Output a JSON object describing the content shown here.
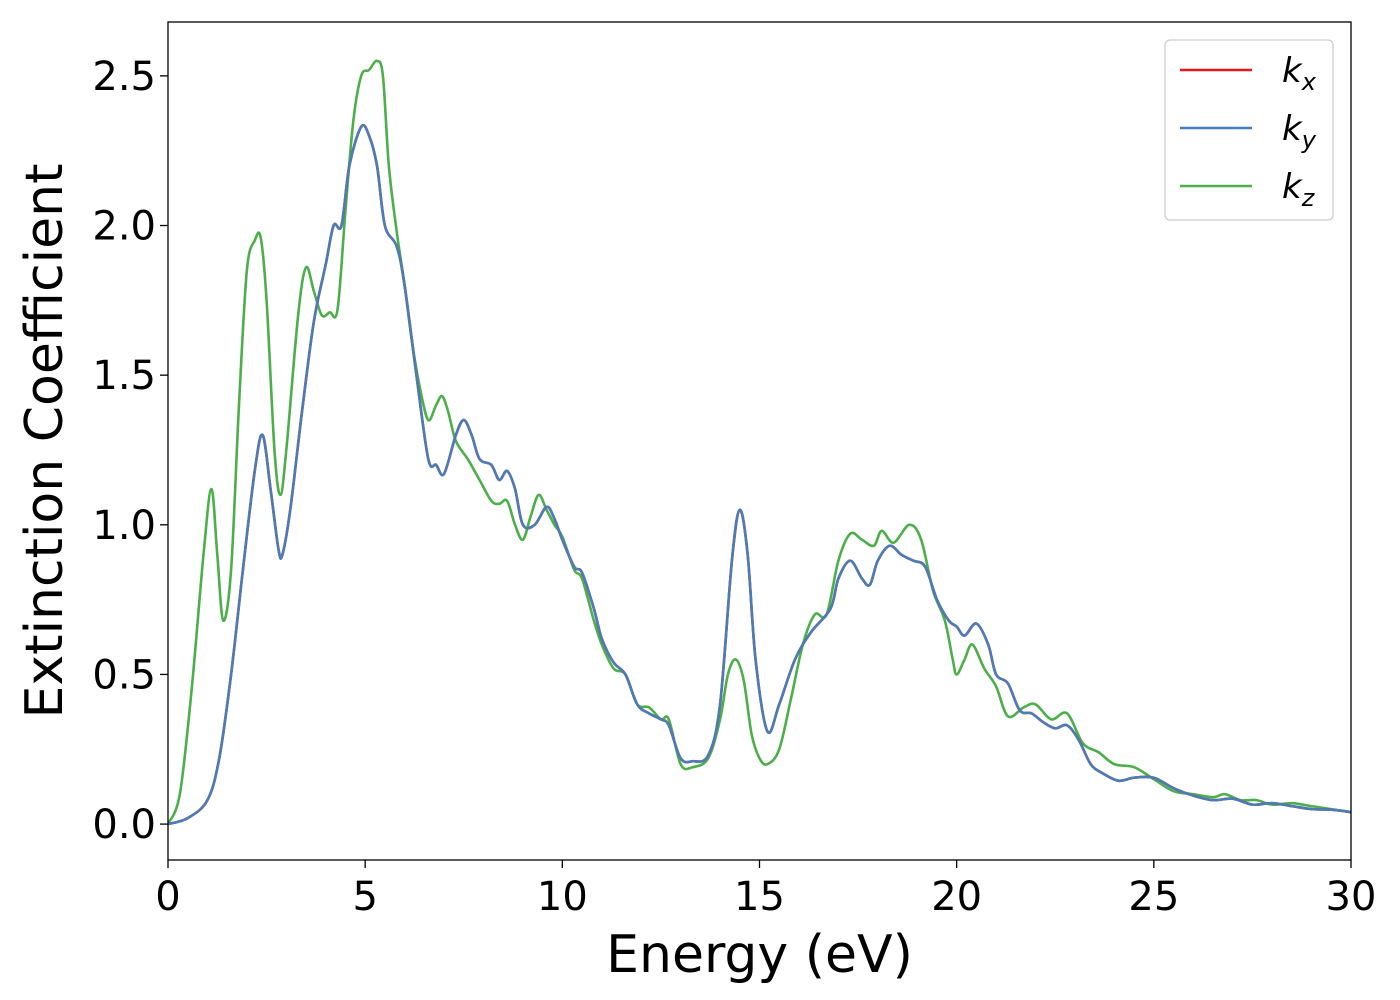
{
  "chart_data": {
    "type": "line",
    "xlabel": "Energy (eV)",
    "ylabel": "Extinction Coefficient",
    "xlim": [
      0,
      30
    ],
    "ylim": [
      -0.12,
      2.68
    ],
    "xticks": [
      0,
      5,
      10,
      15,
      20,
      25,
      30
    ],
    "yticks": [
      0.0,
      0.5,
      1.0,
      1.5,
      2.0,
      2.5
    ],
    "xtick_labels": [
      "0",
      "5",
      "10",
      "15",
      "20",
      "25",
      "30"
    ],
    "ytick_labels": [
      "0.0",
      "0.5",
      "1.0",
      "1.5",
      "2.0",
      "2.5"
    ],
    "grid": false,
    "legend_position": "top-right",
    "series": [
      {
        "name": "k",
        "subscript": "x",
        "color": "#e41a1c",
        "points": [
          [
            0,
            0
          ],
          [
            0.5,
            0.02
          ],
          [
            1.0,
            0.08
          ],
          [
            1.3,
            0.22
          ],
          [
            1.6,
            0.5
          ],
          [
            1.9,
            0.85
          ],
          [
            2.2,
            1.18
          ],
          [
            2.4,
            1.3
          ],
          [
            2.6,
            1.12
          ],
          [
            2.8,
            0.92
          ],
          [
            2.9,
            0.9
          ],
          [
            3.1,
            1.05
          ],
          [
            3.4,
            1.38
          ],
          [
            3.7,
            1.68
          ],
          [
            4.0,
            1.87
          ],
          [
            4.2,
            2.0
          ],
          [
            4.4,
            2.0
          ],
          [
            4.6,
            2.2
          ],
          [
            4.9,
            2.33
          ],
          [
            5.1,
            2.3
          ],
          [
            5.3,
            2.2
          ],
          [
            5.5,
            2.0
          ],
          [
            5.8,
            1.93
          ],
          [
            6.0,
            1.8
          ],
          [
            6.3,
            1.5
          ],
          [
            6.6,
            1.22
          ],
          [
            6.8,
            1.2
          ],
          [
            7.0,
            1.17
          ],
          [
            7.3,
            1.3
          ],
          [
            7.5,
            1.35
          ],
          [
            7.7,
            1.3
          ],
          [
            7.9,
            1.22
          ],
          [
            8.2,
            1.2
          ],
          [
            8.4,
            1.15
          ],
          [
            8.6,
            1.18
          ],
          [
            8.8,
            1.12
          ],
          [
            9.0,
            1.0
          ],
          [
            9.3,
            1.0
          ],
          [
            9.6,
            1.06
          ],
          [
            9.8,
            1.02
          ],
          [
            10.0,
            0.95
          ],
          [
            10.3,
            0.86
          ],
          [
            10.5,
            0.84
          ],
          [
            10.8,
            0.72
          ],
          [
            11.0,
            0.62
          ],
          [
            11.3,
            0.54
          ],
          [
            11.6,
            0.5
          ],
          [
            11.9,
            0.4
          ],
          [
            12.2,
            0.37
          ],
          [
            12.5,
            0.35
          ],
          [
            12.7,
            0.33
          ],
          [
            13.0,
            0.22
          ],
          [
            13.3,
            0.21
          ],
          [
            13.7,
            0.23
          ],
          [
            14.0,
            0.4
          ],
          [
            14.3,
            0.88
          ],
          [
            14.5,
            1.05
          ],
          [
            14.7,
            0.9
          ],
          [
            14.9,
            0.55
          ],
          [
            15.2,
            0.31
          ],
          [
            15.5,
            0.4
          ],
          [
            15.9,
            0.55
          ],
          [
            16.3,
            0.64
          ],
          [
            16.8,
            0.72
          ],
          [
            17.0,
            0.82
          ],
          [
            17.3,
            0.88
          ],
          [
            17.6,
            0.82
          ],
          [
            17.8,
            0.8
          ],
          [
            18.0,
            0.88
          ],
          [
            18.3,
            0.93
          ],
          [
            18.6,
            0.9
          ],
          [
            18.9,
            0.88
          ],
          [
            19.2,
            0.86
          ],
          [
            19.5,
            0.75
          ],
          [
            19.8,
            0.68
          ],
          [
            20.0,
            0.66
          ],
          [
            20.2,
            0.63
          ],
          [
            20.5,
            0.67
          ],
          [
            20.8,
            0.6
          ],
          [
            21.0,
            0.5
          ],
          [
            21.3,
            0.47
          ],
          [
            21.6,
            0.38
          ],
          [
            21.9,
            0.37
          ],
          [
            22.2,
            0.34
          ],
          [
            22.5,
            0.32
          ],
          [
            22.8,
            0.33
          ],
          [
            23.1,
            0.28
          ],
          [
            23.4,
            0.2
          ],
          [
            23.7,
            0.17
          ],
          [
            24.1,
            0.145
          ],
          [
            24.5,
            0.155
          ],
          [
            25.0,
            0.155
          ],
          [
            25.5,
            0.12
          ],
          [
            26.0,
            0.095
          ],
          [
            26.5,
            0.08
          ],
          [
            27.0,
            0.085
          ],
          [
            27.5,
            0.065
          ],
          [
            28.0,
            0.07
          ],
          [
            28.5,
            0.06
          ],
          [
            29.0,
            0.05
          ],
          [
            29.5,
            0.048
          ],
          [
            30.0,
            0.04
          ]
        ]
      },
      {
        "name": "k",
        "subscript": "y",
        "color": "#4a7db8",
        "points": [
          [
            0,
            0
          ],
          [
            0.5,
            0.02
          ],
          [
            1.0,
            0.08
          ],
          [
            1.3,
            0.22
          ],
          [
            1.6,
            0.5
          ],
          [
            1.9,
            0.85
          ],
          [
            2.2,
            1.18
          ],
          [
            2.4,
            1.3
          ],
          [
            2.6,
            1.12
          ],
          [
            2.8,
            0.92
          ],
          [
            2.9,
            0.9
          ],
          [
            3.1,
            1.05
          ],
          [
            3.4,
            1.38
          ],
          [
            3.7,
            1.68
          ],
          [
            4.0,
            1.87
          ],
          [
            4.2,
            2.0
          ],
          [
            4.4,
            2.0
          ],
          [
            4.6,
            2.2
          ],
          [
            4.9,
            2.33
          ],
          [
            5.1,
            2.3
          ],
          [
            5.3,
            2.2
          ],
          [
            5.5,
            2.0
          ],
          [
            5.8,
            1.93
          ],
          [
            6.0,
            1.8
          ],
          [
            6.3,
            1.5
          ],
          [
            6.6,
            1.22
          ],
          [
            6.8,
            1.2
          ],
          [
            7.0,
            1.17
          ],
          [
            7.3,
            1.3
          ],
          [
            7.5,
            1.35
          ],
          [
            7.7,
            1.3
          ],
          [
            7.9,
            1.22
          ],
          [
            8.2,
            1.2
          ],
          [
            8.4,
            1.15
          ],
          [
            8.6,
            1.18
          ],
          [
            8.8,
            1.12
          ],
          [
            9.0,
            1.0
          ],
          [
            9.3,
            1.0
          ],
          [
            9.6,
            1.06
          ],
          [
            9.8,
            1.02
          ],
          [
            10.0,
            0.95
          ],
          [
            10.3,
            0.86
          ],
          [
            10.5,
            0.84
          ],
          [
            10.8,
            0.72
          ],
          [
            11.0,
            0.62
          ],
          [
            11.3,
            0.54
          ],
          [
            11.6,
            0.5
          ],
          [
            11.9,
            0.4
          ],
          [
            12.2,
            0.37
          ],
          [
            12.5,
            0.35
          ],
          [
            12.7,
            0.33
          ],
          [
            13.0,
            0.22
          ],
          [
            13.3,
            0.21
          ],
          [
            13.7,
            0.23
          ],
          [
            14.0,
            0.4
          ],
          [
            14.3,
            0.88
          ],
          [
            14.5,
            1.05
          ],
          [
            14.7,
            0.9
          ],
          [
            14.9,
            0.55
          ],
          [
            15.2,
            0.31
          ],
          [
            15.5,
            0.4
          ],
          [
            15.9,
            0.55
          ],
          [
            16.3,
            0.64
          ],
          [
            16.8,
            0.72
          ],
          [
            17.0,
            0.82
          ],
          [
            17.3,
            0.88
          ],
          [
            17.6,
            0.82
          ],
          [
            17.8,
            0.8
          ],
          [
            18.0,
            0.88
          ],
          [
            18.3,
            0.93
          ],
          [
            18.6,
            0.9
          ],
          [
            18.9,
            0.88
          ],
          [
            19.2,
            0.86
          ],
          [
            19.5,
            0.75
          ],
          [
            19.8,
            0.68
          ],
          [
            20.0,
            0.66
          ],
          [
            20.2,
            0.63
          ],
          [
            20.5,
            0.67
          ],
          [
            20.8,
            0.6
          ],
          [
            21.0,
            0.5
          ],
          [
            21.3,
            0.47
          ],
          [
            21.6,
            0.38
          ],
          [
            21.9,
            0.37
          ],
          [
            22.2,
            0.34
          ],
          [
            22.5,
            0.32
          ],
          [
            22.8,
            0.33
          ],
          [
            23.1,
            0.28
          ],
          [
            23.4,
            0.2
          ],
          [
            23.7,
            0.17
          ],
          [
            24.1,
            0.145
          ],
          [
            24.5,
            0.155
          ],
          [
            25.0,
            0.155
          ],
          [
            25.5,
            0.12
          ],
          [
            26.0,
            0.095
          ],
          [
            26.5,
            0.08
          ],
          [
            27.0,
            0.085
          ],
          [
            27.5,
            0.065
          ],
          [
            28.0,
            0.07
          ],
          [
            28.5,
            0.06
          ],
          [
            29.0,
            0.05
          ],
          [
            29.5,
            0.048
          ],
          [
            30.0,
            0.04
          ]
        ]
      },
      {
        "name": "k",
        "subscript": "z",
        "color": "#4daf4a",
        "points": [
          [
            0,
            0
          ],
          [
            0.3,
            0.1
          ],
          [
            0.6,
            0.45
          ],
          [
            0.9,
            0.9
          ],
          [
            1.1,
            1.12
          ],
          [
            1.25,
            0.9
          ],
          [
            1.4,
            0.68
          ],
          [
            1.6,
            0.85
          ],
          [
            1.8,
            1.4
          ],
          [
            2.0,
            1.85
          ],
          [
            2.2,
            1.95
          ],
          [
            2.35,
            1.96
          ],
          [
            2.5,
            1.75
          ],
          [
            2.7,
            1.25
          ],
          [
            2.85,
            1.1
          ],
          [
            3.0,
            1.25
          ],
          [
            3.3,
            1.7
          ],
          [
            3.5,
            1.86
          ],
          [
            3.7,
            1.78
          ],
          [
            3.9,
            1.7
          ],
          [
            4.1,
            1.71
          ],
          [
            4.3,
            1.72
          ],
          [
            4.5,
            2.05
          ],
          [
            4.7,
            2.35
          ],
          [
            4.9,
            2.5
          ],
          [
            5.1,
            2.52
          ],
          [
            5.3,
            2.55
          ],
          [
            5.45,
            2.5
          ],
          [
            5.6,
            2.2
          ],
          [
            5.8,
            1.98
          ],
          [
            6.0,
            1.8
          ],
          [
            6.2,
            1.6
          ],
          [
            6.4,
            1.45
          ],
          [
            6.6,
            1.35
          ],
          [
            6.8,
            1.4
          ],
          [
            6.95,
            1.43
          ],
          [
            7.1,
            1.38
          ],
          [
            7.3,
            1.28
          ],
          [
            7.6,
            1.22
          ],
          [
            7.9,
            1.15
          ],
          [
            8.2,
            1.08
          ],
          [
            8.4,
            1.07
          ],
          [
            8.6,
            1.08
          ],
          [
            8.8,
            1.0
          ],
          [
            9.0,
            0.95
          ],
          [
            9.2,
            1.03
          ],
          [
            9.4,
            1.1
          ],
          [
            9.6,
            1.05
          ],
          [
            9.8,
            1.0
          ],
          [
            10.0,
            0.96
          ],
          [
            10.3,
            0.85
          ],
          [
            10.5,
            0.82
          ],
          [
            10.8,
            0.68
          ],
          [
            11.0,
            0.6
          ],
          [
            11.3,
            0.52
          ],
          [
            11.6,
            0.5
          ],
          [
            11.9,
            0.4
          ],
          [
            12.2,
            0.39
          ],
          [
            12.5,
            0.35
          ],
          [
            12.7,
            0.35
          ],
          [
            13.0,
            0.2
          ],
          [
            13.3,
            0.19
          ],
          [
            13.7,
            0.22
          ],
          [
            14.0,
            0.35
          ],
          [
            14.2,
            0.5
          ],
          [
            14.4,
            0.55
          ],
          [
            14.6,
            0.48
          ],
          [
            14.8,
            0.3
          ],
          [
            15.0,
            0.22
          ],
          [
            15.2,
            0.2
          ],
          [
            15.5,
            0.25
          ],
          [
            15.8,
            0.42
          ],
          [
            16.1,
            0.6
          ],
          [
            16.4,
            0.7
          ],
          [
            16.7,
            0.7
          ],
          [
            17.0,
            0.88
          ],
          [
            17.3,
            0.97
          ],
          [
            17.6,
            0.95
          ],
          [
            17.9,
            0.93
          ],
          [
            18.1,
            0.98
          ],
          [
            18.4,
            0.94
          ],
          [
            18.8,
            1.0
          ],
          [
            19.1,
            0.95
          ],
          [
            19.4,
            0.78
          ],
          [
            19.7,
            0.68
          ],
          [
            19.9,
            0.55
          ],
          [
            20.0,
            0.5
          ],
          [
            20.2,
            0.55
          ],
          [
            20.4,
            0.6
          ],
          [
            20.7,
            0.52
          ],
          [
            21.0,
            0.46
          ],
          [
            21.3,
            0.36
          ],
          [
            21.7,
            0.39
          ],
          [
            22.0,
            0.4
          ],
          [
            22.4,
            0.35
          ],
          [
            22.8,
            0.37
          ],
          [
            23.2,
            0.27
          ],
          [
            23.6,
            0.24
          ],
          [
            24.0,
            0.2
          ],
          [
            24.5,
            0.19
          ],
          [
            25.0,
            0.15
          ],
          [
            25.5,
            0.11
          ],
          [
            26.0,
            0.1
          ],
          [
            26.5,
            0.09
          ],
          [
            26.8,
            0.1
          ],
          [
            27.2,
            0.08
          ],
          [
            27.6,
            0.08
          ],
          [
            28.0,
            0.065
          ],
          [
            28.5,
            0.07
          ],
          [
            29.0,
            0.06
          ],
          [
            29.5,
            0.05
          ],
          [
            30.0,
            0.04
          ]
        ]
      }
    ]
  }
}
